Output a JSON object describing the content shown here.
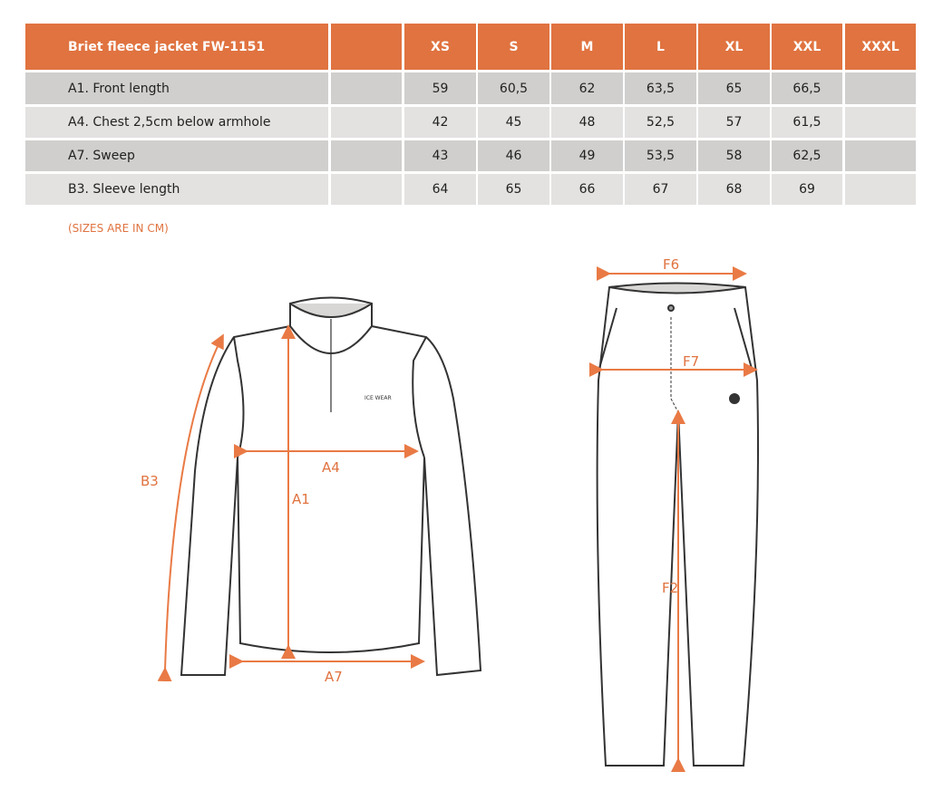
{
  "table": {
    "title": "Briet fleece jacket FW-1151",
    "sizes": [
      "XS",
      "S",
      "M",
      "L",
      "XL",
      "XXL",
      "XXXL"
    ],
    "rows": [
      {
        "label": "A1. Front length",
        "values": [
          "59",
          "60,5",
          "62",
          "63,5",
          "65",
          "66,5",
          ""
        ]
      },
      {
        "label": "A4. Chest 2,5cm below armhole",
        "values": [
          "42",
          "45",
          "48",
          "52,5",
          "57",
          "61,5",
          ""
        ]
      },
      {
        "label": "A7. Sweep",
        "values": [
          "43",
          "46",
          "49",
          "53,5",
          "58",
          "62,5",
          ""
        ]
      },
      {
        "label": "B3. Sleeve length",
        "values": [
          "64",
          "65",
          "66",
          "67",
          "68",
          "69",
          ""
        ]
      }
    ]
  },
  "note": "(SIZES ARE IN CM)",
  "diagram_labels": {
    "b3": "B3",
    "a4": "A4",
    "a1": "A1",
    "a7": "A7",
    "f6": "F6",
    "f7": "F7",
    "f2": "F2"
  },
  "logo_text": "ICE WEAR",
  "colors": {
    "accent": "#e07340",
    "row_dark": "#d0cfcd",
    "row_light": "#e3e2e0"
  }
}
